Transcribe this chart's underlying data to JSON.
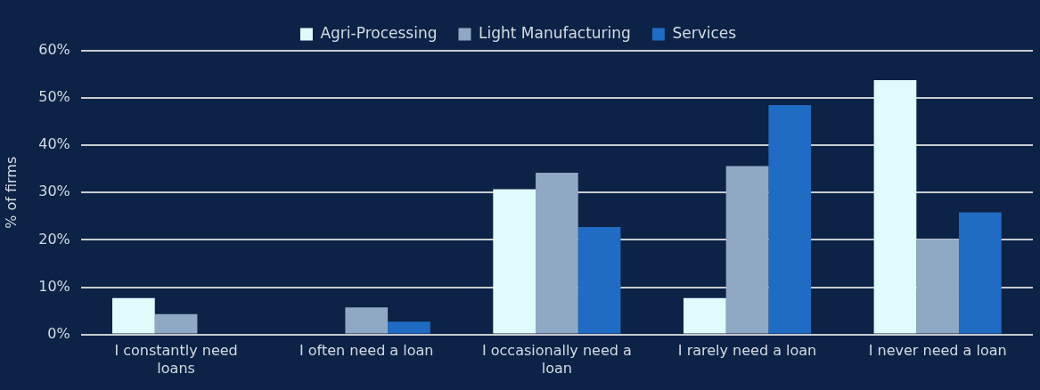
{
  "chart_data": {
    "type": "bar",
    "ylabel": "% of firms",
    "categories": [
      "I constantly need loans",
      "I often need a loan",
      "I occasionally need a loan",
      "I rarely need a loan",
      "I never need a loan"
    ],
    "series": [
      {
        "name": "Agri-Processing",
        "color": "#e0fbfc",
        "values": [
          7.7,
          0,
          30.7,
          7.7,
          53.8
        ]
      },
      {
        "name": "Light Manufacturing",
        "color": "#8fa9c4",
        "values": [
          4.3,
          5.7,
          34.2,
          35.6,
          20.1
        ]
      },
      {
        "name": "Services",
        "color": "#206bc4",
        "values": [
          0,
          2.7,
          22.7,
          48.5,
          25.8
        ]
      }
    ],
    "ylim": [
      0,
      60
    ],
    "yticks": [
      {
        "value": 0,
        "label": "0%"
      },
      {
        "value": 10,
        "label": "10%"
      },
      {
        "value": 20,
        "label": "20%"
      },
      {
        "value": 30,
        "label": "30%"
      },
      {
        "value": 40,
        "label": "40%"
      },
      {
        "value": 50,
        "label": "50%"
      },
      {
        "value": 60,
        "label": "60%"
      }
    ],
    "grid": "y",
    "legend": "top"
  }
}
